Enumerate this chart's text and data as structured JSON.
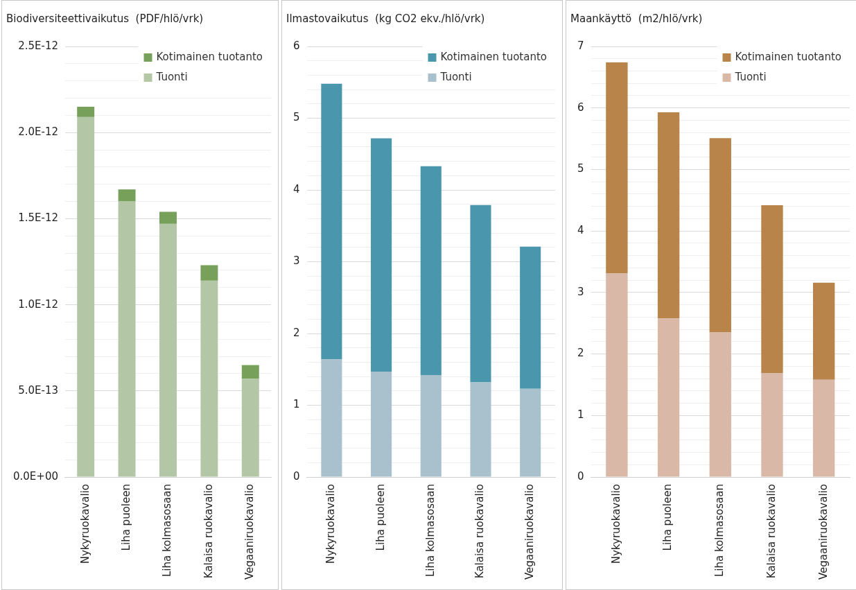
{
  "chart_data": [
    {
      "type": "bar",
      "title": "Biodiversiteettivaikutus  (PDF/hlö/vrk)",
      "categories": [
        "Nykyruokavalio",
        "Liha puoleen",
        "Liha kolmasosaan",
        "Kalaisa ruokavalio",
        "Vegaaniruokavalio"
      ],
      "stacked": true,
      "grid": "y",
      "legend": "top right",
      "series": [
        {
          "name": "Tuonti",
          "color": "#b3c6a6",
          "values": [
            2.09e-12,
            1.6e-12,
            1.47e-12,
            1.14e-12,
            5.7e-13
          ]
        },
        {
          "name": "Kotimainen tuotanto",
          "color": "#77a05a",
          "values": [
            6e-14,
            7e-14,
            7e-14,
            9e-14,
            8e-14
          ]
        }
      ],
      "ylim": [
        0,
        2.5e-12
      ],
      "yticks": [
        {
          "value": 0,
          "label": "0.0E+00"
        },
        {
          "value": 1e-13,
          "label": null
        },
        {
          "value": 2e-13,
          "label": null
        },
        {
          "value": 3e-13,
          "label": null
        },
        {
          "value": 4e-13,
          "label": null
        },
        {
          "value": 5e-13,
          "label": "5.0E-13"
        },
        {
          "value": 6e-13,
          "label": null
        },
        {
          "value": 7e-13,
          "label": null
        },
        {
          "value": 8e-13,
          "label": null
        },
        {
          "value": 9e-13,
          "label": null
        },
        {
          "value": 1e-12,
          "label": "1.0E-12"
        },
        {
          "value": 1.1e-12,
          "label": null
        },
        {
          "value": 1.2e-12,
          "label": null
        },
        {
          "value": 1.3e-12,
          "label": null
        },
        {
          "value": 1.4e-12,
          "label": null
        },
        {
          "value": 1.5e-12,
          "label": "1.5E-12"
        },
        {
          "value": 1.6e-12,
          "label": null
        },
        {
          "value": 1.7e-12,
          "label": null
        },
        {
          "value": 1.8e-12,
          "label": null
        },
        {
          "value": 1.9e-12,
          "label": null
        },
        {
          "value": 2e-12,
          "label": "2.0E-12"
        },
        {
          "value": 2.1e-12,
          "label": null
        },
        {
          "value": 2.2e-12,
          "label": null
        },
        {
          "value": 2.3e-12,
          "label": null
        },
        {
          "value": 2.4e-12,
          "label": null
        },
        {
          "value": 2.5e-12,
          "label": "2.5E-12"
        }
      ]
    },
    {
      "type": "bar",
      "title": "Ilmastovaikutus  (kg CO2 ekv./hlö/vrk)",
      "categories": [
        "Nykyruokavalio",
        "Liha puoleen",
        "Liha kolmasosaan",
        "Kalaisa ruokavalio",
        "Vegaaniruokavalio"
      ],
      "stacked": true,
      "grid": "y",
      "legend": "top right",
      "series": [
        {
          "name": "Tuonti",
          "color": "#a9c1cd",
          "values": [
            1.64,
            1.47,
            1.42,
            1.32,
            1.23
          ]
        },
        {
          "name": "Kotimainen tuotanto",
          "color": "#4a97ad",
          "values": [
            3.84,
            3.25,
            2.91,
            2.47,
            1.98
          ]
        }
      ],
      "ylim": [
        0,
        6
      ],
      "yticks": [
        0,
        {
          "value": 0.2,
          "label": null
        },
        {
          "value": 0.4,
          "label": null
        },
        {
          "value": 0.6,
          "label": null
        },
        {
          "value": 0.8,
          "label": null
        },
        1,
        {
          "value": 1.2,
          "label": null
        },
        {
          "value": 1.4,
          "label": null
        },
        {
          "value": 1.6,
          "label": null
        },
        {
          "value": 1.8,
          "label": null
        },
        2,
        {
          "value": 2.2,
          "label": null
        },
        {
          "value": 2.4,
          "label": null
        },
        {
          "value": 2.6,
          "label": null
        },
        {
          "value": 2.8,
          "label": null
        },
        3,
        {
          "value": 3.2,
          "label": null
        },
        {
          "value": 3.4,
          "label": null
        },
        {
          "value": 3.6,
          "label": null
        },
        {
          "value": 3.8,
          "label": null
        },
        4,
        {
          "value": 4.2,
          "label": null
        },
        {
          "value": 4.4,
          "label": null
        },
        {
          "value": 4.6,
          "label": null
        },
        {
          "value": 4.8,
          "label": null
        },
        5,
        {
          "value": 5.2,
          "label": null
        },
        {
          "value": 5.4,
          "label": null
        },
        {
          "value": 5.6,
          "label": null
        },
        {
          "value": 5.8,
          "label": null
        },
        6
      ]
    },
    {
      "type": "bar",
      "title": "Maankäyttö  (m2/hlö/vrk)",
      "categories": [
        "Nykyruokavalio",
        "Liha puoleen",
        "Liha kolmasosaan",
        "Kalaisa ruokavalio",
        "Vegaaniruokavalio"
      ],
      "stacked": true,
      "grid": "y",
      "legend": "top right",
      "series": [
        {
          "name": "Tuonti",
          "color": "#d9b8a8",
          "values": [
            3.31,
            2.58,
            2.35,
            1.69,
            1.58
          ]
        },
        {
          "name": "Kotimainen tuotanto",
          "color": "#b8844a",
          "values": [
            3.43,
            3.35,
            3.16,
            2.73,
            1.58
          ]
        }
      ],
      "ylim": [
        0,
        7
      ],
      "yticks": [
        0,
        {
          "value": 0.2,
          "label": null
        },
        {
          "value": 0.4,
          "label": null
        },
        {
          "value": 0.6,
          "label": null
        },
        {
          "value": 0.8,
          "label": null
        },
        1,
        {
          "value": 1.2,
          "label": null
        },
        {
          "value": 1.4,
          "label": null
        },
        {
          "value": 1.6,
          "label": null
        },
        {
          "value": 1.8,
          "label": null
        },
        2,
        {
          "value": 2.2,
          "label": null
        },
        {
          "value": 2.4,
          "label": null
        },
        {
          "value": 2.6,
          "label": null
        },
        {
          "value": 2.8,
          "label": null
        },
        3,
        {
          "value": 3.2,
          "label": null
        },
        {
          "value": 3.4,
          "label": null
        },
        {
          "value": 3.6,
          "label": null
        },
        {
          "value": 3.8,
          "label": null
        },
        4,
        {
          "value": 4.2,
          "label": null
        },
        {
          "value": 4.4,
          "label": null
        },
        {
          "value": 4.6,
          "label": null
        },
        {
          "value": 4.8,
          "label": null
        },
        5,
        {
          "value": 5.2,
          "label": null
        },
        {
          "value": 5.4,
          "label": null
        },
        {
          "value": 5.6,
          "label": null
        },
        {
          "value": 5.8,
          "label": null
        },
        6,
        {
          "value": 6.2,
          "label": null
        },
        {
          "value": 6.4,
          "label": null
        },
        {
          "value": 6.6,
          "label": null
        },
        {
          "value": 6.8,
          "label": null
        },
        7
      ]
    }
  ]
}
